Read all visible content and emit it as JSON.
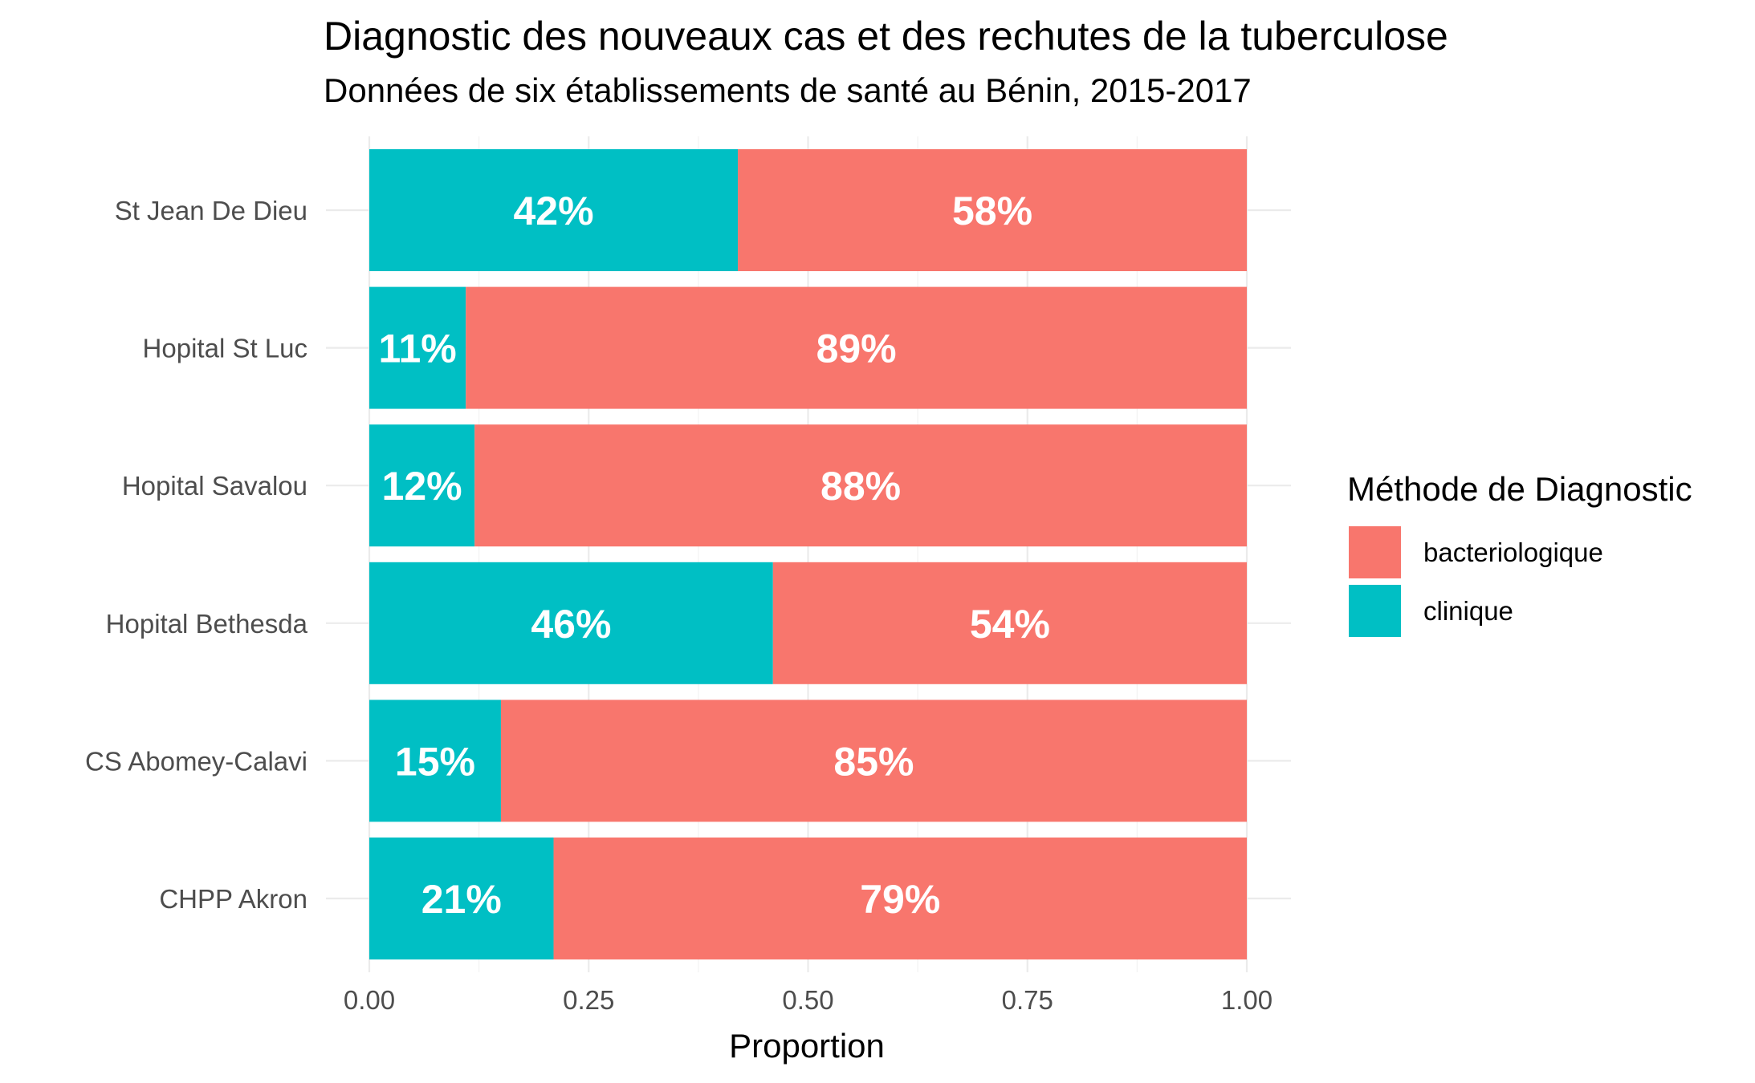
{
  "chart_data": {
    "type": "bar",
    "orientation": "horizontal",
    "stacked": true,
    "title": "Diagnostic des nouveaux cas et des rechutes de la tuberculose",
    "subtitle": "Données de six établissements de santé au Bénin, 2015-2017",
    "xlabel": "Proportion",
    "ylabel": "",
    "xlim": [
      0,
      1
    ],
    "x_ticks": [
      "0.00",
      "0.25",
      "0.50",
      "0.75",
      "1.00"
    ],
    "grid": true,
    "legend": {
      "title": "Méthode de Diagnostic",
      "position": "right"
    },
    "categories": [
      "St Jean De Dieu",
      "Hopital St Luc",
      "Hopital Savalou",
      "Hopital Bethesda",
      "CS Abomey-Calavi",
      "CHPP Akron"
    ],
    "series": [
      {
        "name": "clinique",
        "color": "#00BFC4",
        "values": [
          0.42,
          0.11,
          0.12,
          0.46,
          0.15,
          0.21
        ],
        "labels": [
          "42%",
          "11%",
          "12%",
          "46%",
          "15%",
          "21%"
        ]
      },
      {
        "name": "bacteriologique",
        "color": "#F8766D",
        "values": [
          0.58,
          0.89,
          0.88,
          0.54,
          0.85,
          0.79
        ],
        "labels": [
          "58%",
          "89%",
          "88%",
          "54%",
          "85%",
          "79%"
        ]
      }
    ],
    "legend_order": [
      "bacteriologique",
      "clinique"
    ]
  }
}
